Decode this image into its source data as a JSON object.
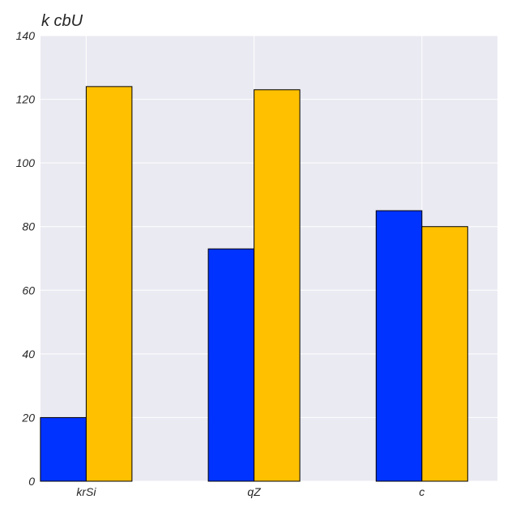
{
  "chart_data": {
    "type": "bar",
    "title": "k cbU",
    "xlabel": "",
    "ylabel": "",
    "categories": [
      "krSi",
      "qZ",
      "c"
    ],
    "series": [
      {
        "values": [
          20,
          73,
          85
        ],
        "color": "#0033ff"
      },
      {
        "values": [
          124,
          123,
          80
        ],
        "color": "#ffc000"
      }
    ],
    "ylim": [
      0,
      140
    ],
    "yticks": [
      0,
      20,
      40,
      60,
      80,
      100,
      120,
      140
    ],
    "grid": true,
    "background_color": "#eaeaf2",
    "grid_color": "#ffffff"
  }
}
